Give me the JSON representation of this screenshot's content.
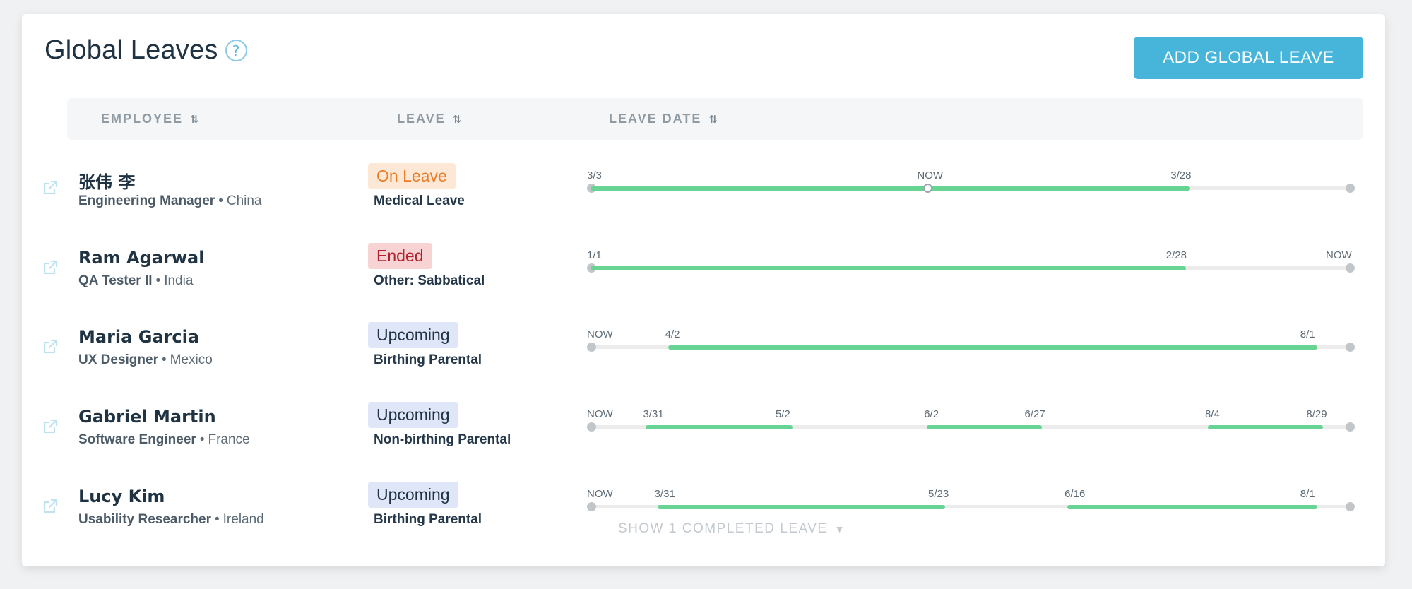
{
  "page": {
    "title": "Global Leaves",
    "help_glyph": "?",
    "add_button_label": "ADD GLOBAL LEAVE"
  },
  "table": {
    "columns": [
      {
        "label": "EMPLOYEE",
        "sortable": true
      },
      {
        "label": "LEAVE",
        "sortable": true
      },
      {
        "label": "LEAVE DATE",
        "sortable": true
      }
    ],
    "rows": [
      {
        "name": "张伟 李",
        "role": "Engineering Manager",
        "separator": "•",
        "country": "China",
        "status": "On Leave",
        "status_kind": "on-leave",
        "leave_type": "Medical Leave",
        "timeline": {
          "start_label": "3/3",
          "now_label": "NOW",
          "end_label": "3/28",
          "now_fraction": 0.445,
          "segments": [
            {
              "start_fraction": 0.0,
              "end_fraction": 0.79
            }
          ]
        }
      },
      {
        "name": "Ram Agarwal",
        "role": "QA Tester II",
        "separator": "•",
        "country": "India",
        "status": "Ended",
        "status_kind": "ended",
        "leave_type": "Other: Sabbatical",
        "timeline": {
          "start_label": "1/1",
          "end_label": "2/28",
          "now_label": "NOW",
          "segments": [
            {
              "start_fraction": 0.0,
              "end_fraction": 0.784
            }
          ]
        }
      },
      {
        "name": "Maria Garcia",
        "role": "UX Designer",
        "separator": "•",
        "country": "Mexico",
        "status": "Upcoming",
        "status_kind": "upcoming",
        "leave_type": "Birthing Parental",
        "timeline": {
          "now_label": "NOW",
          "segments": [
            {
              "start_label": "4/2",
              "end_label": "8/1",
              "start_fraction": 0.102,
              "end_fraction": 0.957
            }
          ]
        }
      },
      {
        "name": "Gabriel Martin",
        "role": "Software Engineer",
        "separator": "•",
        "country": "France",
        "status": "Upcoming",
        "status_kind": "upcoming",
        "leave_type": "Non-birthing Parental",
        "timeline": {
          "now_label": "NOW",
          "segments": [
            {
              "start_label": "3/31",
              "end_label": "5/2",
              "start_fraction": 0.073,
              "end_fraction": 0.266
            },
            {
              "start_label": "6/2",
              "end_label": "6/27",
              "start_fraction": 0.443,
              "end_fraction": 0.594
            },
            {
              "start_label": "8/4",
              "end_label": "8/29",
              "start_fraction": 0.813,
              "end_fraction": 0.965
            }
          ]
        }
      },
      {
        "name": "Lucy Kim",
        "role": "Usability Researcher",
        "separator": "•",
        "country": "Ireland",
        "status": "Upcoming",
        "status_kind": "upcoming",
        "leave_type": "Birthing Parental",
        "timeline": {
          "now_label": "NOW",
          "segments": [
            {
              "start_label": "3/31",
              "end_label": "5/23",
              "start_fraction": 0.088,
              "end_fraction": 0.467
            },
            {
              "start_label": "6/16",
              "end_label": "8/1",
              "start_fraction": 0.628,
              "end_fraction": 0.957
            }
          ]
        }
      }
    ]
  },
  "show_completed": {
    "label": "SHOW 1 COMPLETED LEAVE",
    "caret": "▼"
  },
  "colors": {
    "accent": "#47b5da",
    "segment_green": "#68d494",
    "on_leave_bg": "#fde8d6",
    "on_leave_fg": "#ea7d28",
    "ended_bg": "#f8d3d3",
    "ended_fg": "#b4212c",
    "upcoming_bg": "#dfe6f8"
  },
  "icons": {
    "edit": "edit-external-icon",
    "sort": "sort-arrows-icon",
    "help": "help-circle-icon"
  }
}
